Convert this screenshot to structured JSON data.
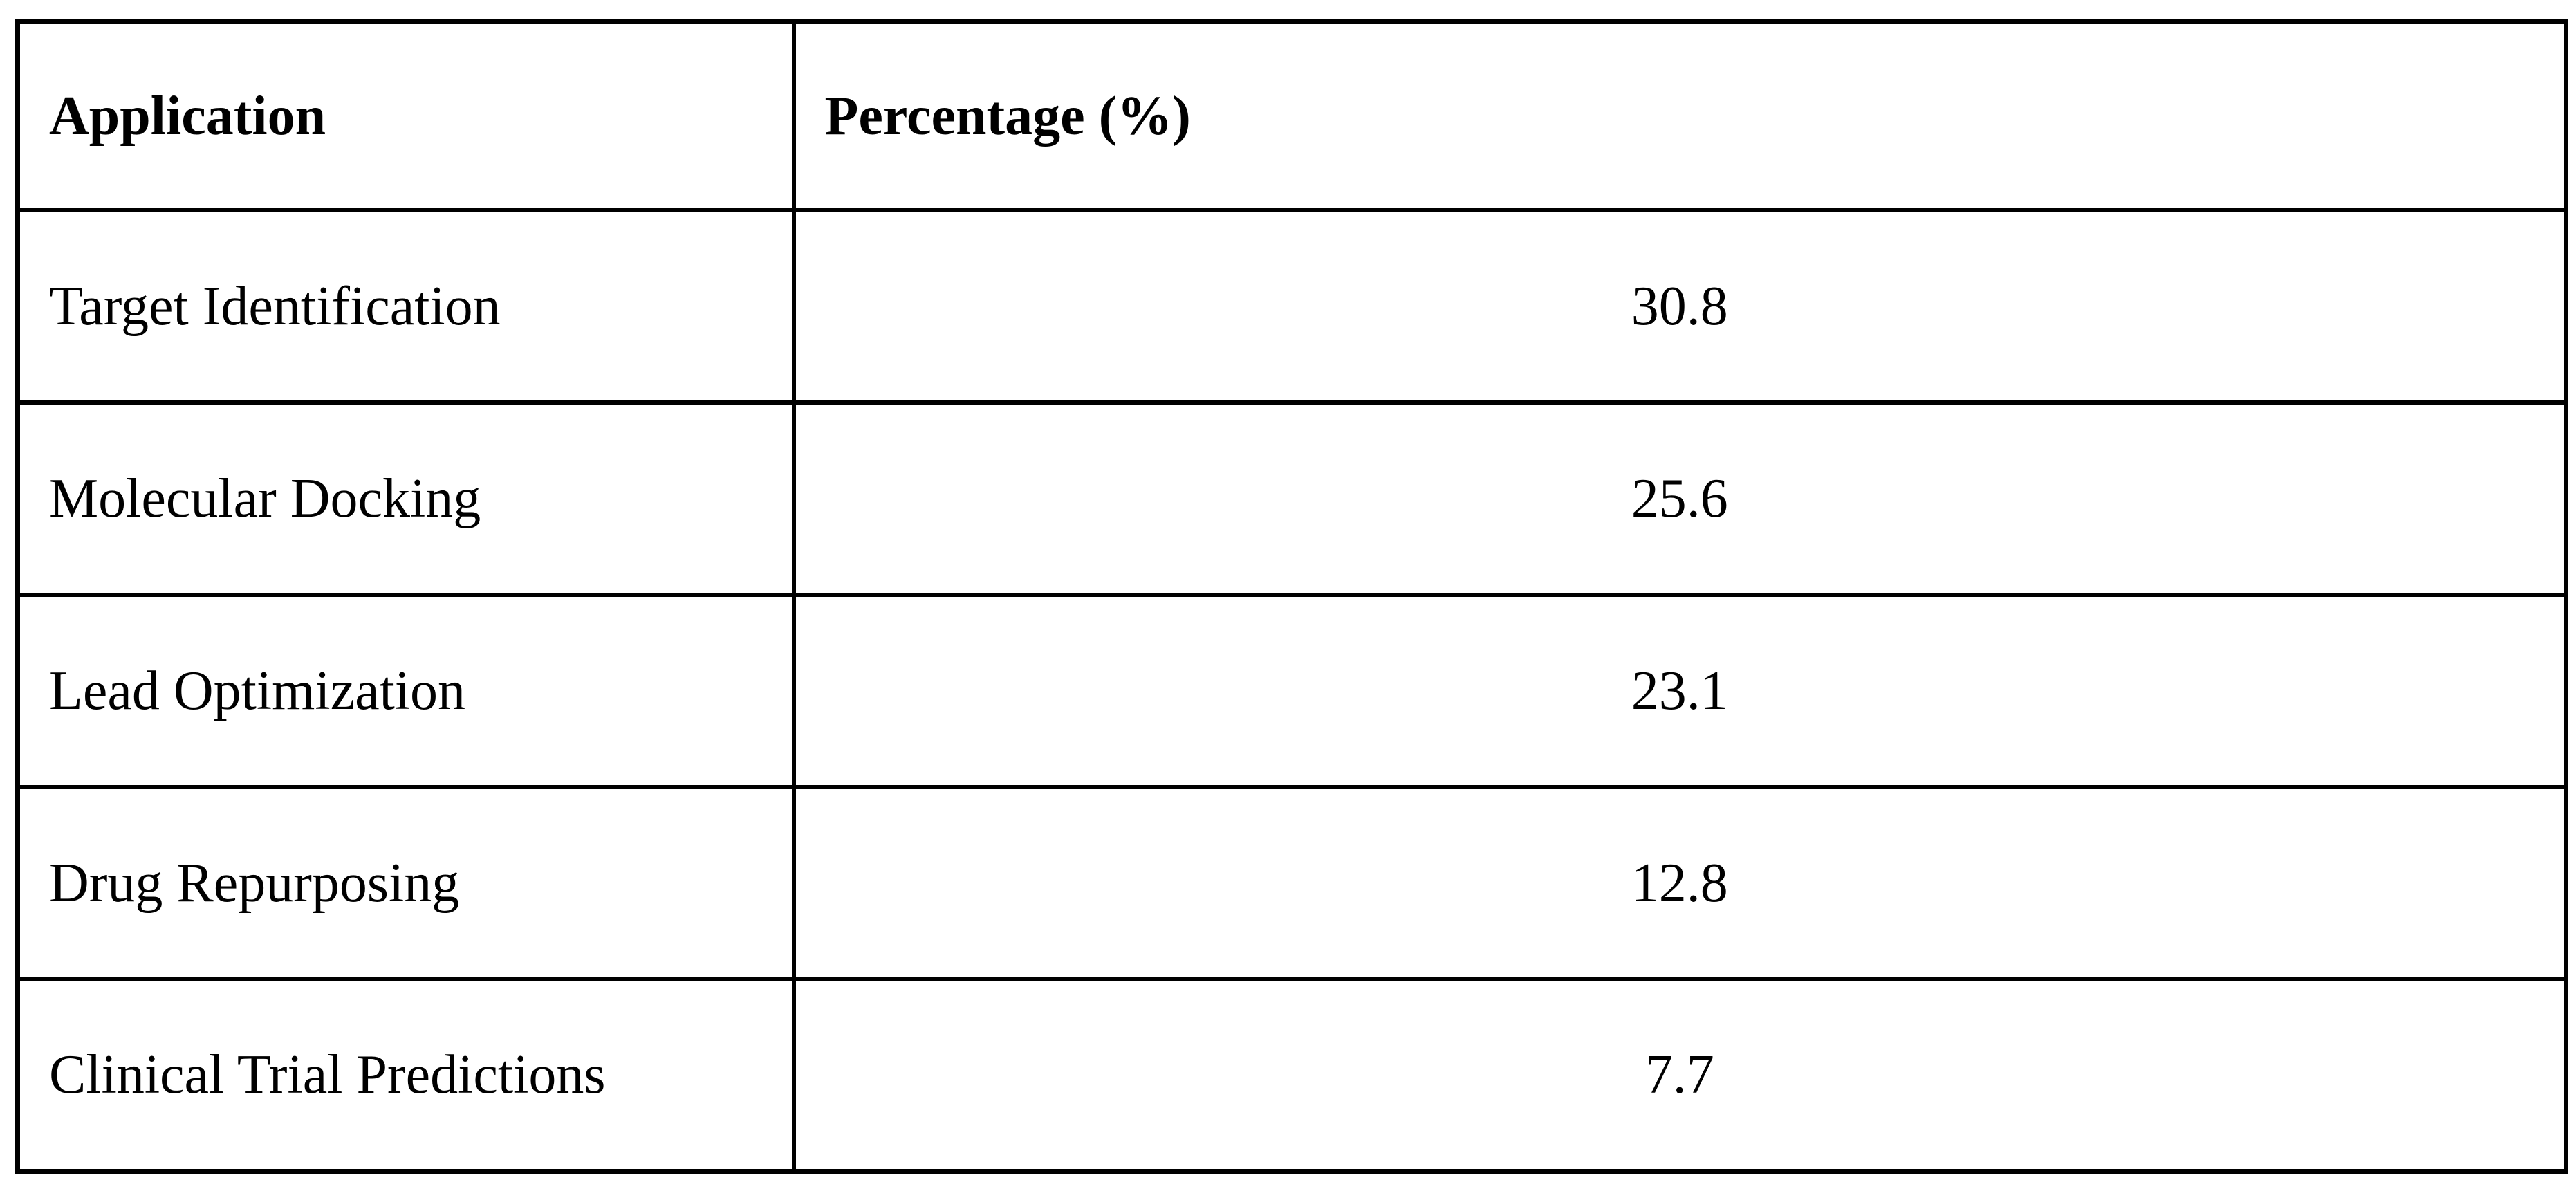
{
  "colors": {
    "background": "#ffffff",
    "border": "#000000",
    "text": "#000000"
  },
  "table": {
    "header": {
      "application": "Application",
      "percentage": "Percentage (%)"
    },
    "rows": [
      {
        "application": "Target Identification",
        "percentage": "30.8"
      },
      {
        "application": "Molecular Docking",
        "percentage": "25.6"
      },
      {
        "application": "Lead Optimization",
        "percentage": "23.1"
      },
      {
        "application": "Drug Repurposing",
        "percentage": "12.8"
      },
      {
        "application": "Clinical Trial Predictions",
        "percentage": "7.7"
      }
    ]
  },
  "chart_data": {
    "type": "table",
    "columns": [
      "Application",
      "Percentage (%)"
    ],
    "rows": [
      [
        "Target Identification",
        30.8
      ],
      [
        "Molecular Docking",
        25.6
      ],
      [
        "Lead Optimization",
        23.1
      ],
      [
        "Drug Repurposing",
        12.8
      ],
      [
        "Clinical Trial Predictions",
        7.7
      ]
    ]
  }
}
